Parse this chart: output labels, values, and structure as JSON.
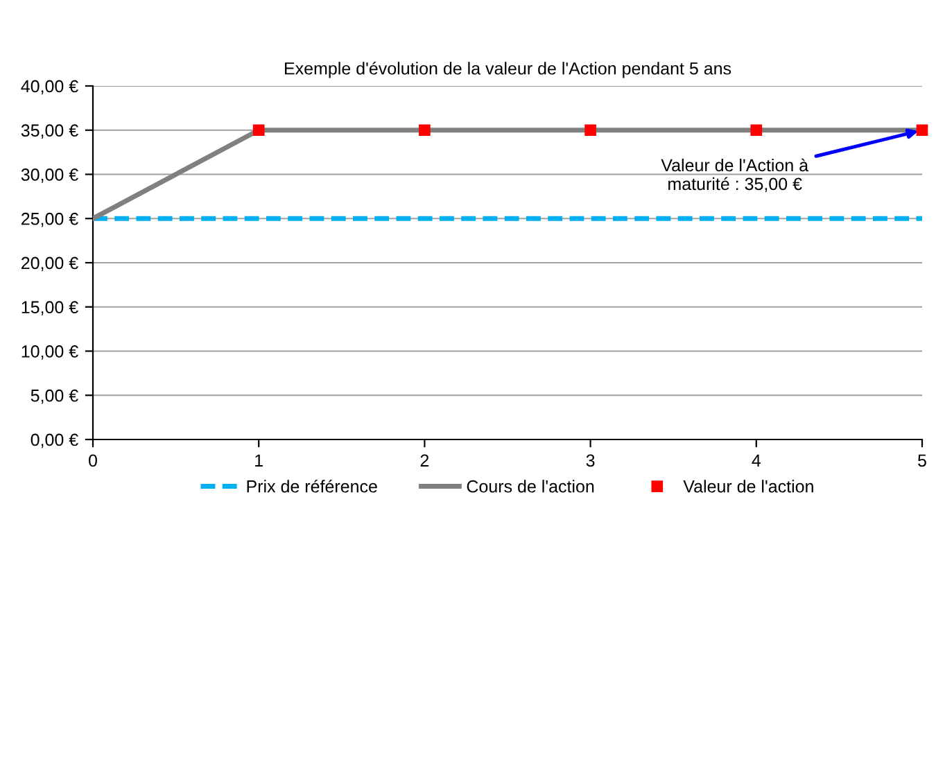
{
  "chart_data": {
    "type": "line",
    "title": "Exemple d'évolution de la valeur de l'Action pendant 5 ans",
    "x": [
      0,
      1,
      2,
      3,
      4,
      5
    ],
    "series": [
      {
        "name": "Prix de référence",
        "color": "#00b0f0",
        "line_style": "dashed",
        "marker": "none",
        "values": [
          25,
          25,
          25,
          25,
          25,
          25
        ]
      },
      {
        "name": "Cours de l'action",
        "color": "#808080",
        "line_style": "solid",
        "marker": "none",
        "values": [
          25,
          35,
          35,
          35,
          35,
          35
        ]
      },
      {
        "name": "Valeur de l'action",
        "type": "scatter",
        "color": "#ff0000",
        "marker": "square",
        "x": [
          1,
          2,
          3,
          4,
          5
        ],
        "values": [
          35,
          35,
          35,
          35,
          35
        ]
      }
    ],
    "xlim": [
      0,
      5
    ],
    "xticks": [
      0,
      1,
      2,
      3,
      4,
      5
    ],
    "ylim": [
      0,
      40
    ],
    "yticks": [
      {
        "value": 0,
        "label": "0,00 €"
      },
      {
        "value": 5,
        "label": "5,00 €"
      },
      {
        "value": 10,
        "label": "10,00 €"
      },
      {
        "value": 15,
        "label": "15,00 €"
      },
      {
        "value": 20,
        "label": "20,00 €"
      },
      {
        "value": 25,
        "label": "25,00 €"
      },
      {
        "value": 30,
        "label": "30,00 €"
      },
      {
        "value": 35,
        "label": "35,00 €"
      },
      {
        "value": 40,
        "label": "40,00 €"
      }
    ],
    "grid": "y",
    "legend": "bottom",
    "annotations": [
      {
        "text": "Valeur de l'Action à\nmaturité : 35,00 €",
        "x": 5,
        "y": 35
      }
    ]
  }
}
